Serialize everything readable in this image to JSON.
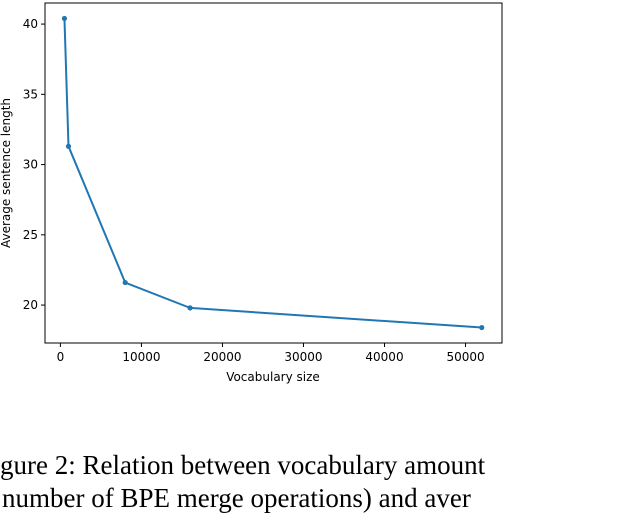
{
  "chart_data": {
    "type": "line",
    "x": [
      500,
      1000,
      8000,
      16000,
      52000
    ],
    "series": [
      {
        "values": [
          40.4,
          31.3,
          21.6,
          19.8,
          18.4
        ],
        "color": "#1f77b4"
      }
    ],
    "xlabel": "Vocabulary size",
    "ylabel": "Average sentence length",
    "xticks": [
      "0",
      "10000",
      "20000",
      "30000",
      "40000",
      "50000"
    ],
    "yticks": [
      "20",
      "25",
      "30",
      "35",
      "40"
    ],
    "xlim": [
      -1900,
      54500
    ],
    "ylim": [
      17.3,
      41.5
    ],
    "grid": false
  },
  "caption": {
    "line1": "gure 2:  Relation between vocabulary amount",
    "line2": "number of BPE merge operations) and aver"
  }
}
